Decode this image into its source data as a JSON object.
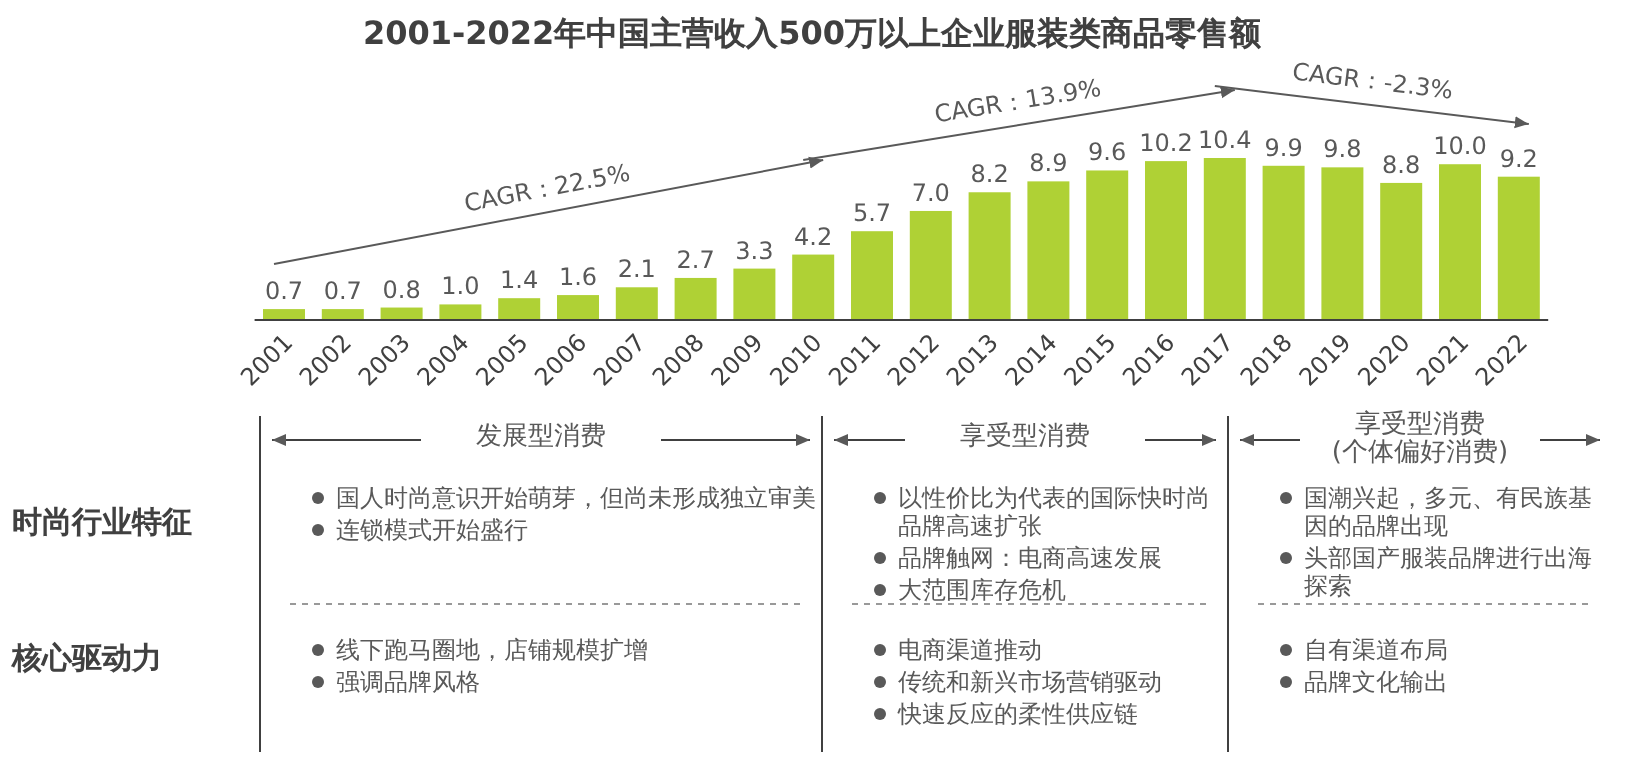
{
  "chart_data": {
    "type": "bar",
    "title": "2001-2022年中国主营收入500万以上企业服装类商品零售额",
    "categories": [
      "2001",
      "2002",
      "2003",
      "2004",
      "2005",
      "2006",
      "2007",
      "2008",
      "2009",
      "2010",
      "2011",
      "2012",
      "2013",
      "2014",
      "2015",
      "2016",
      "2017",
      "2018",
      "2019",
      "2020",
      "2021",
      "2022"
    ],
    "values": [
      0.7,
      0.7,
      0.8,
      1.0,
      1.4,
      1.6,
      2.1,
      2.7,
      3.3,
      4.2,
      5.7,
      7.0,
      8.2,
      8.9,
      9.6,
      10.2,
      10.4,
      9.9,
      9.8,
      8.8,
      10.0,
      9.2
    ],
    "color": "#afd135",
    "value_labels": [
      "0.7",
      "0.7",
      "0.8",
      "1.0",
      "1.4",
      "1.6",
      "2.1",
      "2.7",
      "3.3",
      "4.2",
      "5.7",
      "7.0",
      "8.2",
      "8.9",
      "9.6",
      "10.2",
      "10.4",
      "9.9",
      "9.8",
      "8.8",
      "10.0",
      "9.2"
    ],
    "annotations": [
      "CAGR：22.5%",
      "CAGR：13.9%",
      "CAGR：-2.3%",
      "发展型消费",
      "享受型消费",
      "享受型消费\n(个体偏好消费)",
      "时尚行业特征",
      "核心驱动力",
      "国人时尚意识开始萌芽，但尚未形成独立审美",
      "连锁模式开始盛行",
      "以性价比为代表的国际快时尚品牌高速扩张",
      "品牌触网：电商高速发展",
      "大范围库存危机",
      "国潮兴起，多元、有民族基因的品牌出现",
      "头部国产服装品牌进行出海探索",
      "线下跑马圈地，店铺规模扩增",
      "强调品牌风格",
      "电商渠道推动",
      "传统和新兴市场营销驱动",
      "快速反应的柔性供应链",
      "自有渠道布局",
      "品牌文化输出"
    ]
  }
}
